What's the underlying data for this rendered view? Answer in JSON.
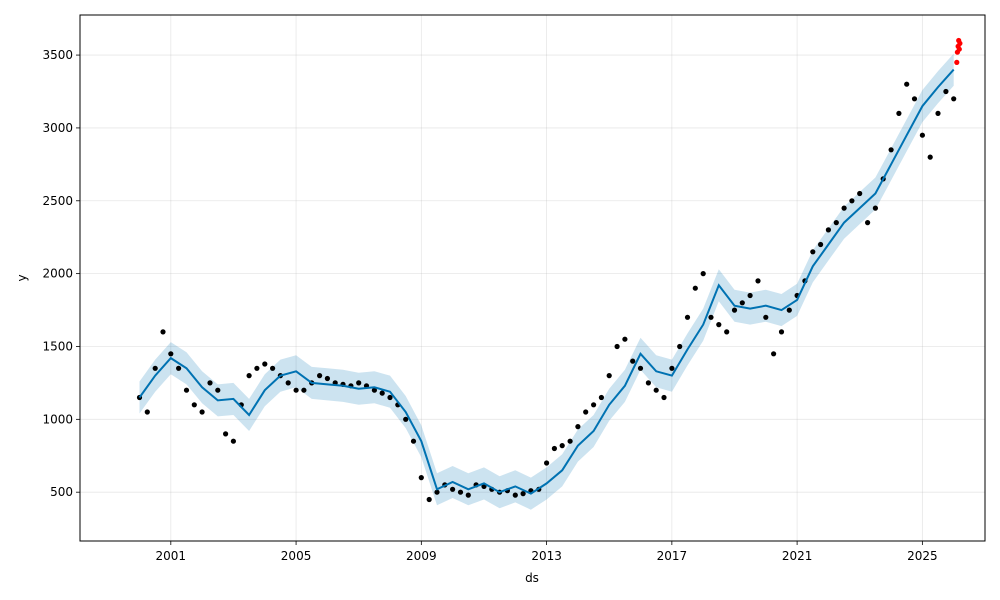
{
  "chart_data": {
    "type": "line",
    "title": "",
    "xlabel": "ds",
    "ylabel": "y",
    "xlim": [
      1998.1,
      2027.0
    ],
    "ylim": [
      165,
      3775
    ],
    "x_ticks": [
      2001,
      2005,
      2009,
      2013,
      2017,
      2021,
      2025
    ],
    "x_tick_labels": [
      "2001",
      "2005",
      "2009",
      "2013",
      "2017",
      "2021",
      "2025"
    ],
    "y_ticks": [
      500,
      1000,
      1500,
      2000,
      2500,
      3000,
      3500
    ],
    "y_tick_labels": [
      "500",
      "1000",
      "1500",
      "2000",
      "2500",
      "3000",
      "3500"
    ],
    "grid": true,
    "colors": {
      "observed": "#000000",
      "forecast_line": "#0072B2",
      "uncertainty_band": "#0072B2",
      "recent_points": "#ff0000"
    },
    "series": [
      {
        "name": "",
        "kind": "forecast_yhat",
        "x": [
          2000.0,
          2000.5,
          2001.0,
          2001.5,
          2002.0,
          2002.5,
          2003.0,
          2003.5,
          2004.0,
          2004.5,
          2005.0,
          2005.5,
          2006.0,
          2006.5,
          2007.0,
          2007.5,
          2008.0,
          2008.5,
          2009.0,
          2009.5,
          2010.0,
          2010.5,
          2011.0,
          2011.5,
          2012.0,
          2012.5,
          2013.0,
          2013.5,
          2014.0,
          2014.5,
          2015.0,
          2015.5,
          2016.0,
          2016.5,
          2017.0,
          2017.5,
          2018.0,
          2018.5,
          2019.0,
          2019.5,
          2020.0,
          2020.5,
          2021.0,
          2021.5,
          2022.0,
          2022.5,
          2023.0,
          2023.5,
          2024.0,
          2024.5,
          2025.0,
          2025.5,
          2026.0
        ],
        "y": [
          1150,
          1300,
          1420,
          1350,
          1220,
          1130,
          1140,
          1030,
          1200,
          1300,
          1330,
          1250,
          1240,
          1230,
          1210,
          1220,
          1190,
          1050,
          850,
          520,
          570,
          520,
          560,
          500,
          540,
          490,
          560,
          650,
          820,
          920,
          1100,
          1230,
          1450,
          1330,
          1300,
          1480,
          1650,
          1920,
          1780,
          1760,
          1780,
          1750,
          1820,
          2050,
          2200,
          2350,
          2450,
          2550,
          2750,
          2950,
          3150,
          3280,
          3400
        ]
      },
      {
        "name": "",
        "kind": "observed",
        "x": [
          2000.0,
          2000.25,
          2000.5,
          2000.75,
          2001.0,
          2001.25,
          2001.5,
          2001.75,
          2002.0,
          2002.25,
          2002.5,
          2002.75,
          2003.0,
          2003.25,
          2003.5,
          2003.75,
          2004.0,
          2004.25,
          2004.5,
          2004.75,
          2005.0,
          2005.25,
          2005.5,
          2005.75,
          2006.0,
          2006.25,
          2006.5,
          2006.75,
          2007.0,
          2007.25,
          2007.5,
          2007.75,
          2008.0,
          2008.25,
          2008.5,
          2008.75,
          2009.0,
          2009.25,
          2009.5,
          2009.75,
          2010.0,
          2010.25,
          2010.5,
          2010.75,
          2011.0,
          2011.25,
          2011.5,
          2011.75,
          2012.0,
          2012.25,
          2012.5,
          2012.75,
          2013.0,
          2013.25,
          2013.5,
          2013.75,
          2014.0,
          2014.25,
          2014.5,
          2014.75,
          2015.0,
          2015.25,
          2015.5,
          2015.75,
          2016.0,
          2016.25,
          2016.5,
          2016.75,
          2017.0,
          2017.25,
          2017.5,
          2017.75,
          2018.0,
          2018.25,
          2018.5,
          2018.75,
          2019.0,
          2019.25,
          2019.5,
          2019.75,
          2020.0,
          2020.25,
          2020.5,
          2020.75,
          2021.0,
          2021.25,
          2021.5,
          2021.75,
          2022.0,
          2022.25,
          2022.5,
          2022.75,
          2023.0,
          2023.25,
          2023.5,
          2023.75,
          2024.0,
          2024.25,
          2024.5,
          2024.75,
          2025.0,
          2025.25,
          2025.5,
          2025.75,
          2026.0
        ],
        "y": [
          1150,
          1050,
          1350,
          1600,
          1450,
          1350,
          1200,
          1100,
          1050,
          1250,
          1200,
          900,
          850,
          1100,
          1300,
          1350,
          1380,
          1350,
          1300,
          1250,
          1200,
          1200,
          1250,
          1300,
          1280,
          1250,
          1240,
          1230,
          1250,
          1230,
          1200,
          1180,
          1150,
          1100,
          1000,
          850,
          600,
          450,
          500,
          550,
          520,
          500,
          480,
          550,
          540,
          520,
          500,
          510,
          480,
          490,
          510,
          520,
          700,
          800,
          820,
          850,
          950,
          1050,
          1100,
          1150,
          1300,
          1500,
          1550,
          1400,
          1350,
          1250,
          1200,
          1150,
          1350,
          1500,
          1700,
          1900,
          2000,
          1700,
          1650,
          1600,
          1750,
          1800,
          1850,
          1950,
          1700,
          1450,
          1600,
          1750,
          1850,
          1950,
          2150,
          2200,
          2300,
          2350,
          2450,
          2500,
          2550,
          2350,
          2450,
          2650,
          2850,
          3100,
          3300,
          3200,
          2950,
          2800,
          3100,
          3250,
          3200
        ]
      },
      {
        "name": "",
        "kind": "recent",
        "x": [
          2026.1,
          2026.12,
          2026.14,
          2026.16,
          2026.18,
          2026.2
        ],
        "y": [
          3450,
          3520,
          3560,
          3600,
          3540,
          3580
        ]
      }
    ],
    "uncertainty_band_halfwidth": 110
  }
}
